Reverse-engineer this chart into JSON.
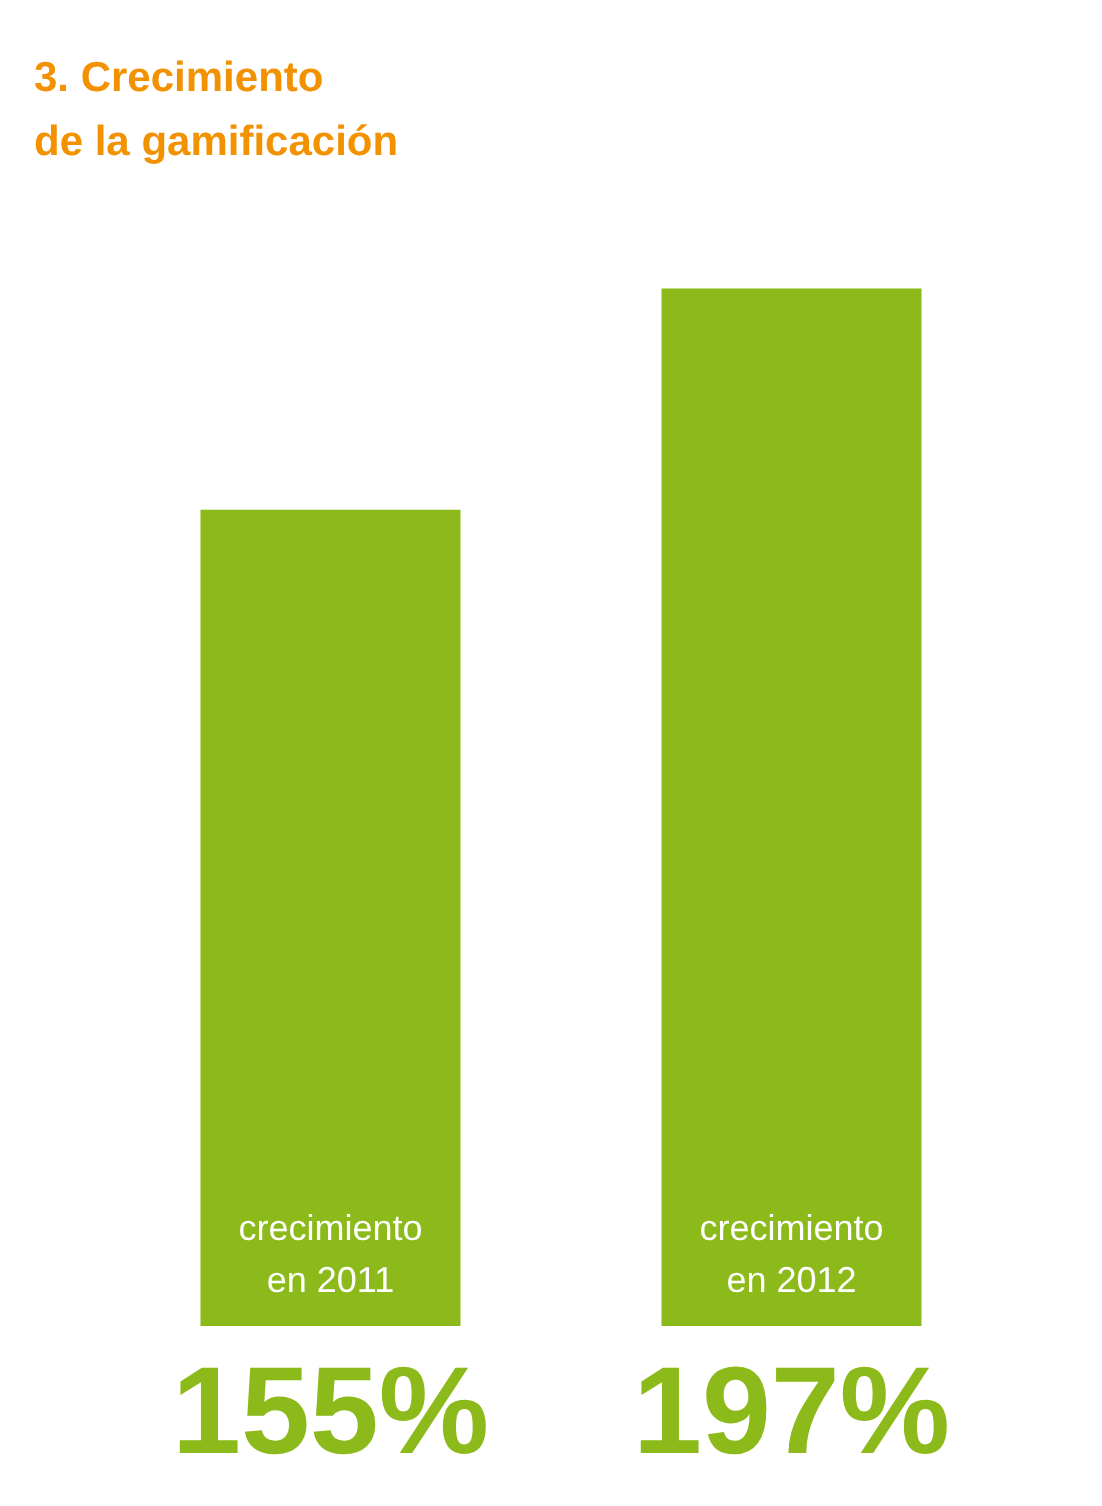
{
  "chart_data": {
    "type": "bar",
    "title": "3. Crecimiento\nde la gamificación",
    "categories": [
      "crecimiento\nen 2011",
      "crecimiento\nen 2012"
    ],
    "values": [
      155,
      197
    ],
    "color": "#8cba1a",
    "value_labels": [
      "155%",
      "197%"
    ]
  }
}
